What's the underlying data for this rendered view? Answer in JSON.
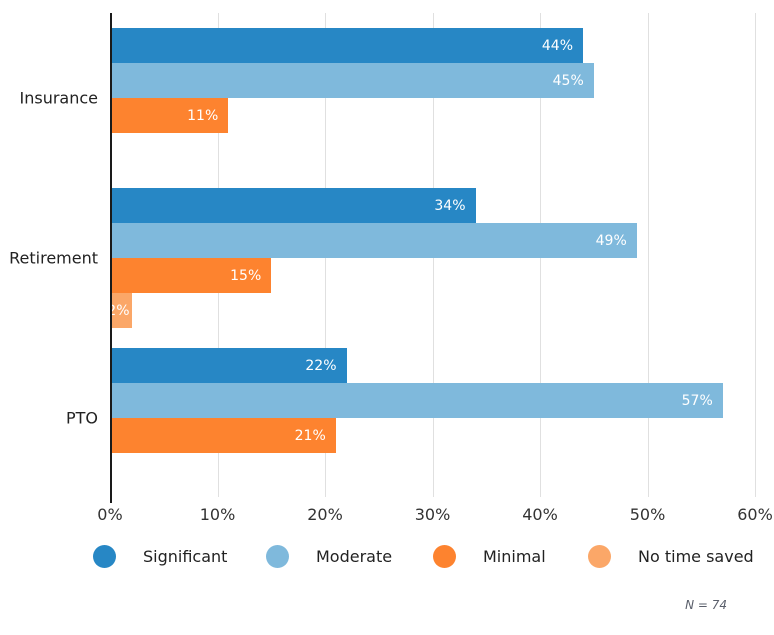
{
  "chart_data": {
    "type": "bar",
    "orientation": "horizontal",
    "title": "",
    "categories": [
      "Insurance",
      "Retirement",
      "PTO"
    ],
    "series": [
      {
        "name": "Significant",
        "color": "#2787c5",
        "values": [
          44,
          34,
          22
        ]
      },
      {
        "name": "Moderate",
        "color": "#7fb9dc",
        "values": [
          45,
          49,
          57
        ]
      },
      {
        "name": "Minimal",
        "color": "#fd832f",
        "values": [
          11,
          15,
          21
        ]
      },
      {
        "name": "No time saved",
        "color": "#fba768",
        "values": [
          0,
          2,
          0
        ]
      }
    ],
    "value_suffix": "%",
    "x_axis": {
      "min": 0,
      "max": 60,
      "ticks": [
        0,
        10,
        20,
        30,
        40,
        50,
        60
      ],
      "tick_labels": [
        "0%",
        "10%",
        "20%",
        "30%",
        "40%",
        "50%",
        "60%"
      ],
      "grid": true
    },
    "legend": {
      "position": "bottom",
      "entries": [
        "Significant",
        "Moderate",
        "Minimal",
        "No time saved"
      ]
    },
    "note": "N = 74"
  },
  "style": {
    "background": "#ffffff",
    "axis_color": "#1a1a1a",
    "gridline_color": "#e0e0e0",
    "category_label_color": "#222222",
    "tick_label_color": "#333333",
    "value_label_color": "#ffffff",
    "note_color": "#5a5f6b"
  }
}
